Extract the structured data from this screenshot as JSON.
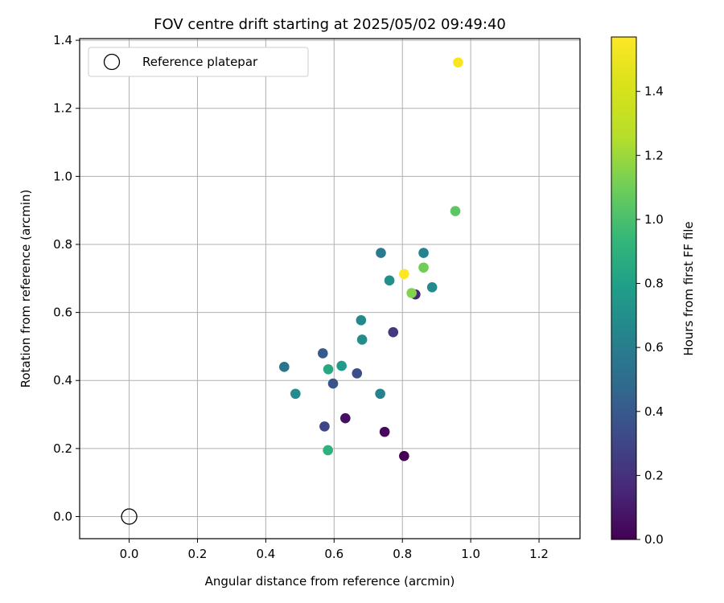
{
  "chart_data": {
    "type": "scatter",
    "title": "FOV centre drift starting at 2025/05/02 09:49:40",
    "xlabel": "Angular distance from reference (arcmin)",
    "ylabel": "Rotation from reference (arcmin)",
    "xlim": [
      -0.145,
      1.32
    ],
    "ylim": [
      -0.065,
      1.405
    ],
    "x_ticks": [
      "0.0",
      "0.2",
      "0.4",
      "0.6",
      "0.8",
      "1.0",
      "1.2"
    ],
    "y_ticks": [
      "0.0",
      "0.2",
      "0.4",
      "0.6",
      "0.8",
      "1.0",
      "1.2",
      "1.4"
    ],
    "grid": true,
    "legend": {
      "location": "upper-left",
      "entries": [
        {
          "label": "Reference platepar",
          "marker": "open-circle"
        }
      ]
    },
    "reference_point": {
      "x": 0.0,
      "y": 0.0
    },
    "colorbar": {
      "label": "Hours from first FF file",
      "colormap": "viridis",
      "range": [
        0.0,
        1.57
      ],
      "ticks": [
        "0.0",
        "0.2",
        "0.4",
        "0.6",
        "0.8",
        "1.0",
        "1.2",
        "1.4"
      ]
    },
    "series": [
      {
        "points": [
          {
            "x": 0.805,
            "y": 0.178,
            "c": 0.0
          },
          {
            "x": 0.748,
            "y": 0.249,
            "c": 0.03
          },
          {
            "x": 0.633,
            "y": 0.289,
            "c": 0.06
          },
          {
            "x": 0.838,
            "y": 0.653,
            "c": 0.15
          },
          {
            "x": 0.773,
            "y": 0.542,
            "c": 0.24
          },
          {
            "x": 0.572,
            "y": 0.265,
            "c": 0.3
          },
          {
            "x": 0.667,
            "y": 0.421,
            "c": 0.34
          },
          {
            "x": 0.567,
            "y": 0.48,
            "c": 0.4
          },
          {
            "x": 0.597,
            "y": 0.391,
            "c": 0.37
          },
          {
            "x": 0.454,
            "y": 0.44,
            "c": 0.55
          },
          {
            "x": 0.737,
            "y": 0.775,
            "c": 0.58
          },
          {
            "x": 0.735,
            "y": 0.361,
            "c": 0.63
          },
          {
            "x": 0.862,
            "y": 0.775,
            "c": 0.63
          },
          {
            "x": 0.487,
            "y": 0.361,
            "c": 0.68
          },
          {
            "x": 0.682,
            "y": 0.52,
            "c": 0.69
          },
          {
            "x": 0.679,
            "y": 0.577,
            "c": 0.66
          },
          {
            "x": 0.762,
            "y": 0.694,
            "c": 0.7
          },
          {
            "x": 0.887,
            "y": 0.674,
            "c": 0.68
          },
          {
            "x": 0.622,
            "y": 0.443,
            "c": 0.76
          },
          {
            "x": 0.583,
            "y": 0.433,
            "c": 0.85
          },
          {
            "x": 0.582,
            "y": 0.195,
            "c": 0.9
          },
          {
            "x": 0.955,
            "y": 0.898,
            "c": 1.05
          },
          {
            "x": 0.862,
            "y": 0.732,
            "c": 1.1
          },
          {
            "x": 0.827,
            "y": 0.657,
            "c": 1.14
          },
          {
            "x": 0.963,
            "y": 1.335,
            "c": 1.55
          },
          {
            "x": 0.805,
            "y": 0.713,
            "c": 1.57
          }
        ]
      }
    ]
  }
}
